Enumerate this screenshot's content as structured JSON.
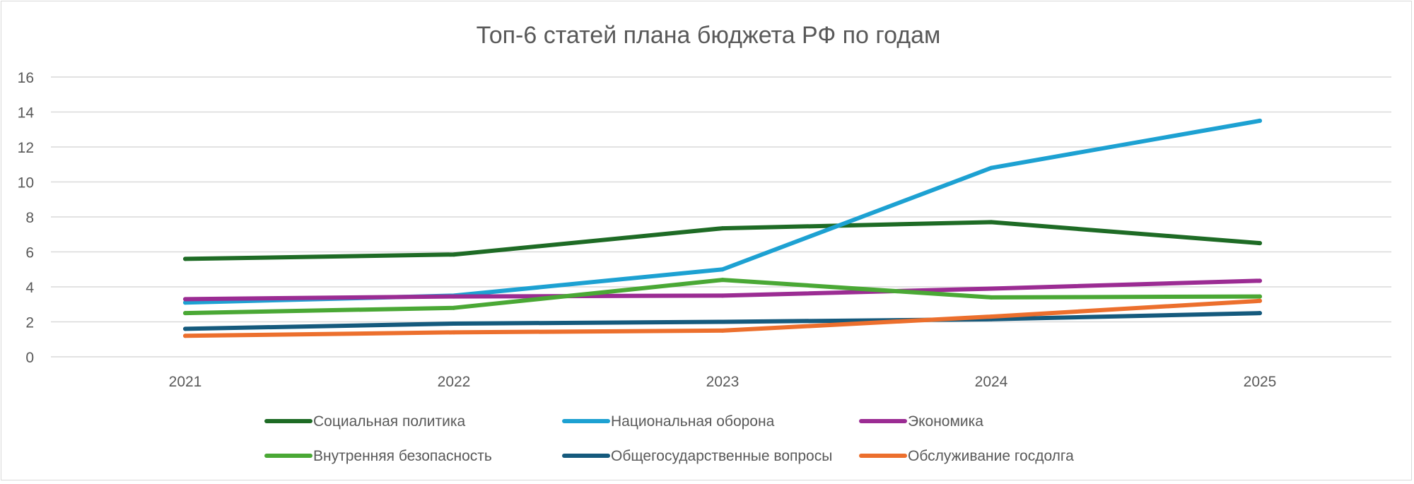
{
  "chart_data": {
    "type": "line",
    "title": "Топ-6 статей плана бюджета РФ по годам",
    "categories": [
      "2021",
      "2022",
      "2023",
      "2024",
      "2025"
    ],
    "ylim": [
      0,
      16
    ],
    "yticks": [
      0,
      2,
      4,
      6,
      8,
      10,
      12,
      14,
      16
    ],
    "grid": true,
    "legend_position": "bottom",
    "xlabel": "",
    "ylabel": "",
    "series": [
      {
        "name": "Социальная политика",
        "color": "#1e6b25",
        "values": [
          5.6,
          5.85,
          7.35,
          7.7,
          6.5
        ]
      },
      {
        "name": "Национальная оборона",
        "color": "#1da1d2",
        "values": [
          3.1,
          3.5,
          5.0,
          10.8,
          13.5
        ]
      },
      {
        "name": "Экономика",
        "color": "#9b2c93",
        "values": [
          3.3,
          3.45,
          3.5,
          3.9,
          4.35
        ]
      },
      {
        "name": "Внутренняя безопасность",
        "color": "#4aa835",
        "values": [
          2.5,
          2.8,
          4.4,
          3.4,
          3.45
        ]
      },
      {
        "name": "Общегосударственные вопросы",
        "color": "#155a7d",
        "values": [
          1.6,
          1.9,
          2.0,
          2.15,
          2.5
        ]
      },
      {
        "name": "Обслуживание госдолга",
        "color": "#ec6f2d",
        "values": [
          1.2,
          1.4,
          1.5,
          2.3,
          3.2
        ]
      }
    ]
  }
}
